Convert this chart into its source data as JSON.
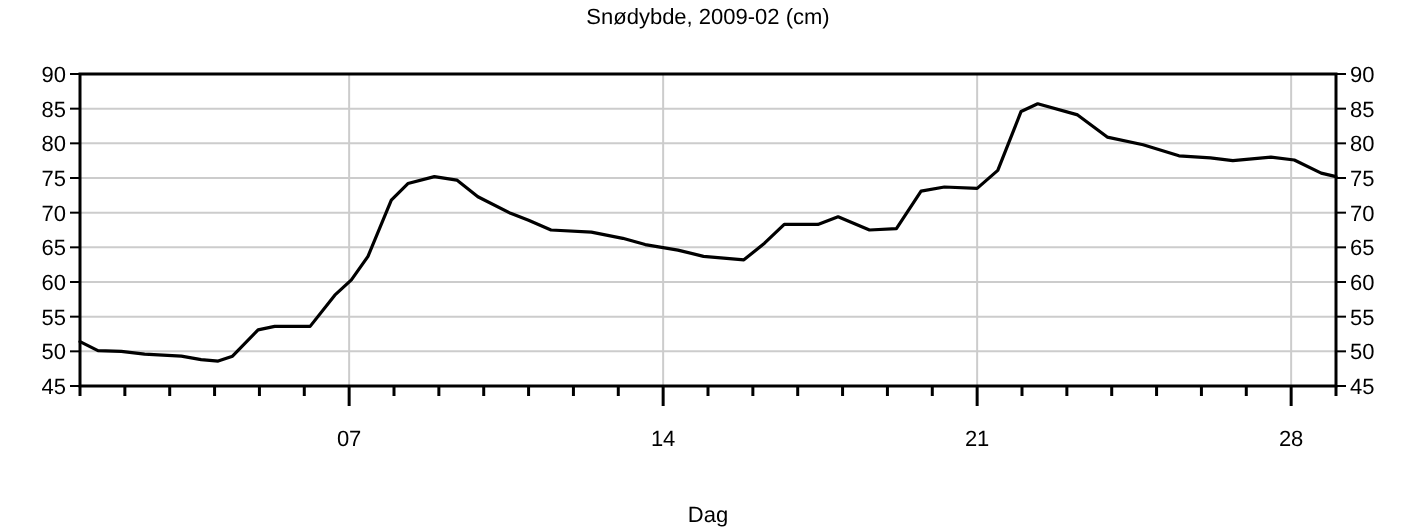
{
  "chart_data": {
    "type": "line",
    "title": "Snødybde, 2009-02 (cm)",
    "xlabel": "Dag",
    "x": [
      1,
      1.4,
      1.92,
      2.44,
      3.26,
      3.7,
      4.08,
      4.4,
      4.97,
      5.34,
      6.13,
      6.68,
      7.05,
      7.42,
      7.94,
      8.31,
      8.9,
      9.4,
      9.87,
      10.6,
      11,
      11.5,
      12.4,
      13.1,
      13.6,
      14.33,
      14.9,
      15.8,
      16.26,
      16.7,
      17.45,
      17.9,
      18.6,
      19.2,
      19.75,
      20.27,
      21,
      21.46,
      21.98,
      22.35,
      23.24,
      23.9,
      24.7,
      25.5,
      26.2,
      26.7,
      27.55,
      28.07,
      28.67,
      29
    ],
    "series": [
      {
        "color": "#000000",
        "values": [
          51.4,
          50.1,
          50.0,
          49.6,
          49.3,
          48.8,
          48.6,
          49.3,
          53.1,
          53.6,
          53.6,
          58.1,
          60.3,
          63.7,
          71.8,
          74.2,
          75.2,
          74.7,
          72.3,
          69.9,
          68.9,
          67.5,
          67.2,
          66.3,
          65.4,
          64.6,
          63.7,
          63.2,
          65.6,
          68.3,
          68.3,
          69.4,
          67.5,
          67.7,
          73.1,
          73.7,
          73.5,
          76.1,
          84.6,
          85.7,
          84.1,
          80.9,
          79.8,
          78.2,
          77.9,
          77.5,
          78.0,
          77.6,
          75.7,
          75.2
        ]
      }
    ],
    "xlim": [
      1,
      29
    ],
    "xticks": [
      {
        "value": 1,
        "label": null
      },
      {
        "value": 2,
        "label": null
      },
      {
        "value": 3,
        "label": null
      },
      {
        "value": 4,
        "label": null
      },
      {
        "value": 5,
        "label": null
      },
      {
        "value": 6,
        "label": null
      },
      {
        "value": 7,
        "label": "07"
      },
      {
        "value": 8,
        "label": null
      },
      {
        "value": 9,
        "label": null
      },
      {
        "value": 10,
        "label": null
      },
      {
        "value": 11,
        "label": null
      },
      {
        "value": 12,
        "label": null
      },
      {
        "value": 13,
        "label": null
      },
      {
        "value": 14,
        "label": "14"
      },
      {
        "value": 15,
        "label": null
      },
      {
        "value": 16,
        "label": null
      },
      {
        "value": 17,
        "label": null
      },
      {
        "value": 18,
        "label": null
      },
      {
        "value": 19,
        "label": null
      },
      {
        "value": 20,
        "label": null
      },
      {
        "value": 21,
        "label": "21"
      },
      {
        "value": 22,
        "label": null
      },
      {
        "value": 23,
        "label": null
      },
      {
        "value": 24,
        "label": null
      },
      {
        "value": 25,
        "label": null
      },
      {
        "value": 26,
        "label": null
      },
      {
        "value": 27,
        "label": null
      },
      {
        "value": 28,
        "label": "28"
      },
      {
        "value": 29,
        "label": null
      }
    ],
    "ylim": [
      45,
      90
    ],
    "yticks": [
      45,
      50,
      55,
      60,
      65,
      70,
      75,
      80,
      85,
      90
    ],
    "y2lim": [
      45,
      90
    ],
    "y2ticks": [
      45,
      50,
      55,
      60,
      65,
      70,
      75,
      80,
      85,
      90
    ],
    "grid": true,
    "marker": "none",
    "line_style": "solid"
  }
}
